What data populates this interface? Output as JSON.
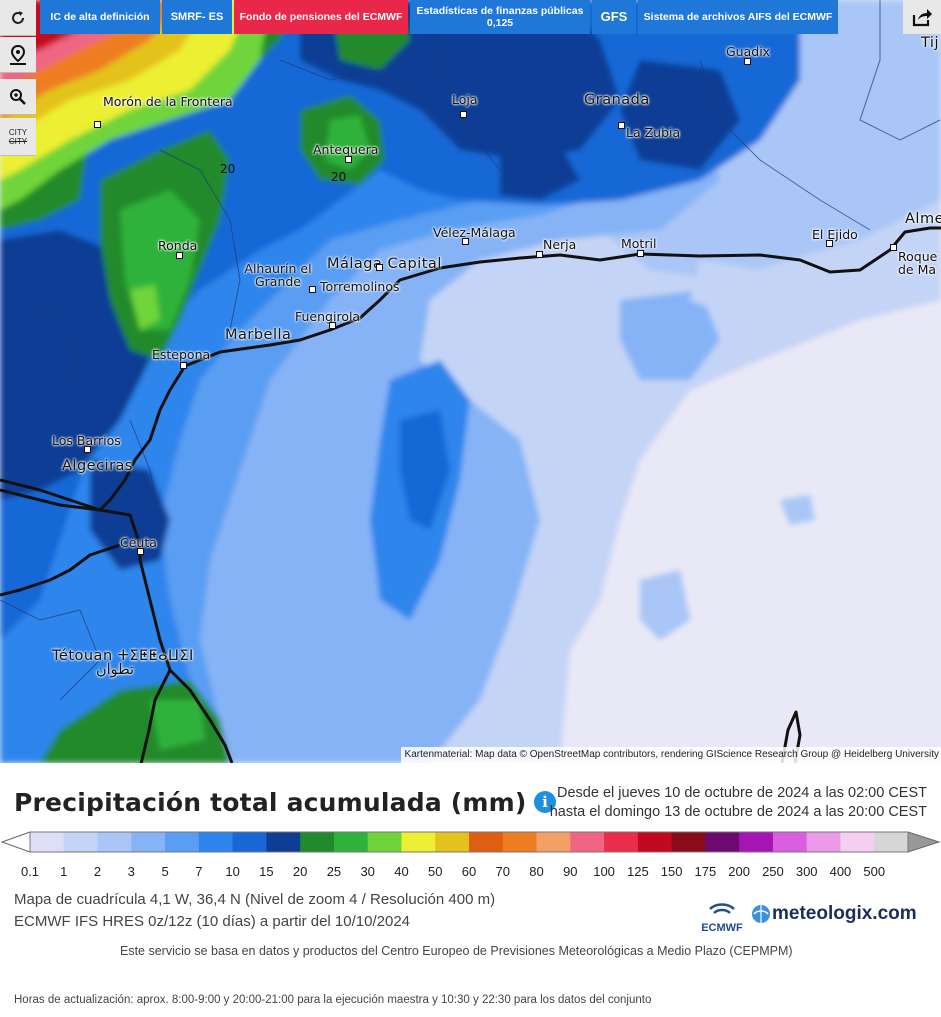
{
  "toolbar": {
    "tabs": [
      {
        "id": "ic",
        "label": "IC de alta definición"
      },
      {
        "id": "smrf",
        "label": "SMRF- ES"
      },
      {
        "id": "pension",
        "label": "Fondo de pensiones del ECMWF"
      },
      {
        "id": "finance",
        "label": "Estadísticas de finanzas públicas 0,125"
      },
      {
        "id": "gfs",
        "label": "GFS"
      },
      {
        "id": "archive",
        "label": "Sistema de archivos AIFS del ECMWF"
      }
    ],
    "controls": [
      "refresh-icon",
      "location-pin-icon",
      "zoom-icon",
      "city-toggle-icon"
    ],
    "city_label": "CITY",
    "share": "share-icon"
  },
  "map": {
    "places": [
      {
        "name": "Morón de la Frontera"
      },
      {
        "name": "Antequera"
      },
      {
        "name": "Loja"
      },
      {
        "name": "Granada"
      },
      {
        "name": "La Zubia"
      },
      {
        "name": "Guadix"
      },
      {
        "name": "Ronda"
      },
      {
        "name": "Vélez-Málaga"
      },
      {
        "name": "Nerja"
      },
      {
        "name": "Motril"
      },
      {
        "name": "El Ejido"
      },
      {
        "name": "Alhaurín el Grande"
      },
      {
        "name": "Málaga Capital"
      },
      {
        "name": "Torremolinos"
      },
      {
        "name": "Fuengirola"
      },
      {
        "name": "Marbella"
      },
      {
        "name": "Estepona"
      },
      {
        "name": "Los Barrios"
      },
      {
        "name": "Algeciras"
      },
      {
        "name": "Ceuta"
      },
      {
        "name": "Tétouan ⵜⵉⵟⵟⴰⵡⵉⵏ"
      },
      {
        "name": "تطوان"
      },
      {
        "name": "Alme"
      },
      {
        "name": "Roque de Ma"
      },
      {
        "name": "Tij"
      }
    ],
    "isolines": [
      "20",
      "20"
    ],
    "attribution": "Kartenmaterial: Map data © OpenStreetMap contributors, rendering GIScience Research Group @ Heidelberg University"
  },
  "panel": {
    "title": "Precipitación total acumulada (mm)",
    "info_icon": "i",
    "from": "Desde el jueves 10 de octubre de 2024 a  las 02:00  CEST",
    "to": "hasta el domingo 13 de octubre de 2024 a  las 20:00  CEST",
    "legend": {
      "values": [
        "0.1",
        "1",
        "2",
        "3",
        "5",
        "7",
        "10",
        "15",
        "20",
        "25",
        "30",
        "40",
        "50",
        "60",
        "70",
        "80",
        "90",
        "100",
        "125",
        "150",
        "175",
        "200",
        "250",
        "300",
        "400",
        "500"
      ],
      "colors": [
        "#dcdff5",
        "#c4d4f6",
        "#a9c6f7",
        "#86b3f6",
        "#5a9ef3",
        "#2e85ec",
        "#1767d6",
        "#0f3d94",
        "#218a2c",
        "#2fb23a",
        "#6fd43a",
        "#ecef33",
        "#e4c21e",
        "#e05e12",
        "#ee7d22",
        "#f3a066",
        "#f06584",
        "#e92d4b",
        "#c2091f",
        "#8a0c18",
        "#6c0a6f",
        "#a515b4",
        "#d95fe0",
        "#ec99ea",
        "#f5cff0",
        "#d6d6d6"
      ]
    },
    "grid_info": "Mapa de cuadrícula 4,1 W, 36,4 N  (Nivel de zoom 4 / Resolución 400 m)",
    "model_info": "ECMWF IFS HRES 0z/12z  (10 días)  a partir del 10/10/2024",
    "ecmwf_label": "ECMWF",
    "brand": "meteologix.com",
    "service_note": "Este servicio se basa en datos y productos del Centro Europeo de Previsiones Meteorológicas a Medio Plazo  (CEPMPM)",
    "update_note": "Horas de actualización: aprox. 8:00-9:00 y 20:00-21:00 para la ejecución maestra y 10:30 y 22:30 para los datos del conjunto"
  }
}
